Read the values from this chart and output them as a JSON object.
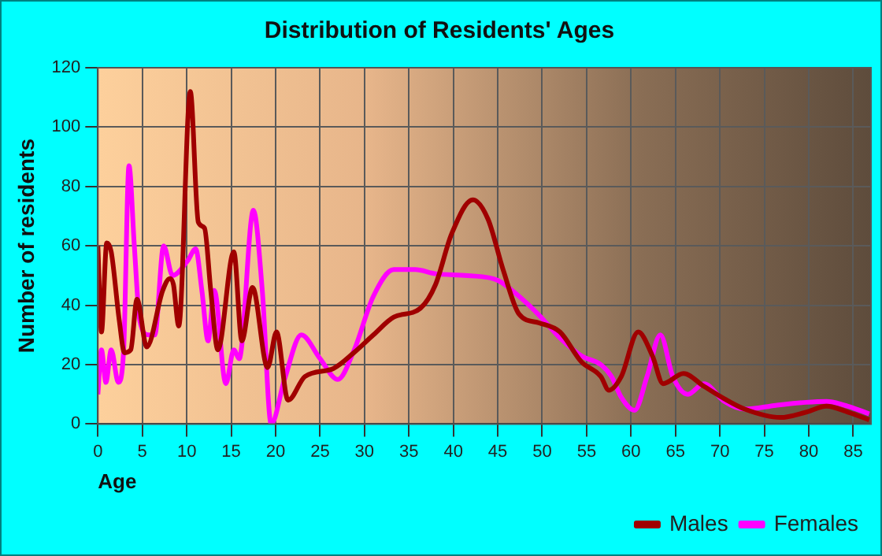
{
  "chart_data": {
    "type": "line",
    "title": "Distribution of Residents' Ages",
    "xlabel": "Age",
    "ylabel": "Number of residents",
    "xlim": [
      0,
      87
    ],
    "xticks": [
      0,
      5,
      10,
      15,
      20,
      25,
      30,
      35,
      40,
      45,
      50,
      55,
      60,
      65,
      70,
      75,
      80,
      85
    ],
    "ylim": [
      0,
      120
    ],
    "yticks": [
      0,
      20,
      40,
      60,
      80,
      100,
      120
    ],
    "grid": true,
    "legend": "bottom right",
    "marker": "none",
    "line_style": "solid",
    "series": [
      {
        "name": "Males",
        "color": "#a00000",
        "x": [
          0,
          0.4,
          1,
          1.5,
          2.4,
          3,
          3.7,
          4.4,
          5.5,
          7.3,
          8.1,
          8.5,
          9.1,
          10.4,
          11.3,
          12,
          12.7,
          13.5,
          15.3,
          16.2,
          17.4,
          19.1,
          20.1,
          21.4,
          23.3,
          26.5,
          28.8,
          31,
          33.3,
          36.3,
          38,
          39.8,
          42.2,
          43.9,
          45.6,
          47.4,
          49.7,
          52,
          54.4,
          56.6,
          57.5,
          58.9,
          60.8,
          62.4,
          63.6,
          65.9,
          68.2,
          70.5,
          72.8,
          76.8,
          79.7,
          82,
          84.4,
          86.8
        ],
        "values": [
          60,
          31,
          61,
          58,
          35,
          24,
          25,
          42,
          26,
          45,
          49,
          47,
          33,
          112,
          68,
          66,
          45,
          25,
          58,
          28,
          46,
          19,
          31,
          8,
          16,
          18.7,
          24,
          30,
          36,
          39,
          47,
          64,
          75.5,
          69,
          52,
          37,
          34,
          31,
          21,
          16,
          11.4,
          16,
          31,
          23,
          13.6,
          17,
          12.7,
          8.5,
          5,
          2.2,
          4,
          6,
          4,
          1.4
        ]
      },
      {
        "name": "Females",
        "color": "#ff00ff",
        "x": [
          0,
          0.4,
          0.9,
          1.5,
          2.3,
          2.9,
          3.5,
          4.1,
          4.7,
          5.7,
          6.4,
          7.4,
          8.4,
          10.1,
          11,
          11.7,
          12.4,
          13.1,
          14.4,
          15.3,
          15.9,
          17.5,
          18.5,
          19.5,
          21,
          22.9,
          25,
          27,
          28.8,
          31,
          33.3,
          35.7,
          38,
          41.6,
          45,
          47.4,
          49.7,
          52,
          54.4,
          56.6,
          57.8,
          58.9,
          60.4,
          61.8,
          63.3,
          64.7,
          66.4,
          68.2,
          70.5,
          72.8,
          76.3,
          79.7,
          82,
          84.4,
          86.8
        ],
        "values": [
          10,
          25,
          14,
          25,
          14,
          25,
          87,
          60,
          35,
          30,
          30,
          60,
          50,
          55,
          59,
          45,
          28,
          45,
          13.6,
          25,
          22,
          72,
          45,
          0,
          15,
          30,
          22,
          15,
          24.6,
          43,
          52,
          52,
          50.6,
          50,
          48.4,
          43,
          36.5,
          29,
          23,
          20,
          16,
          9,
          4.6,
          16,
          30,
          16,
          10,
          13.6,
          7.6,
          5,
          6.3,
          7.3,
          7.6,
          6,
          3.4
        ]
      }
    ]
  }
}
